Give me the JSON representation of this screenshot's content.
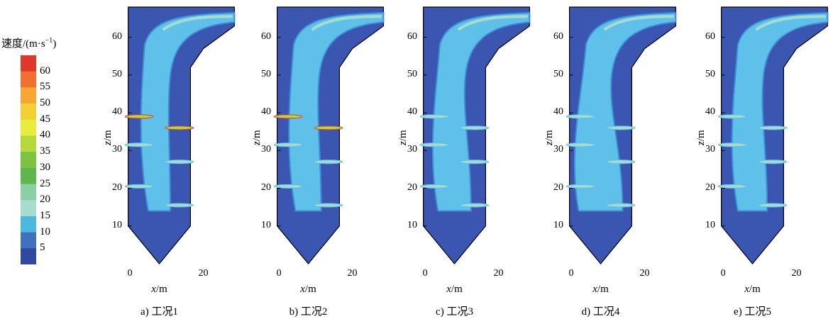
{
  "legend": {
    "title": "速度/(m·s",
    "title_sup": "−1",
    "title_end": ")",
    "ticks": [
      "60",
      "55",
      "50",
      "45",
      "40",
      "35",
      "30",
      "25",
      "20",
      "15",
      "10",
      "5"
    ],
    "colors": [
      "#e0382b",
      "#f2702e",
      "#f6a632",
      "#f3d034",
      "#e8ec3c",
      "#b5d83d",
      "#7cc243",
      "#5fb64c",
      "#8ccfa5",
      "#a9dccf",
      "#4fb8e0",
      "#3e72bf",
      "#3048a0"
    ]
  },
  "colors": {
    "background": "#3a56b0",
    "mid": "#3f8fd6",
    "light": "#5fc0ea",
    "pale": "#a6dccf",
    "outline": "#000000"
  },
  "chart_data": [
    {
      "type": "heatmap",
      "caption": "a) 工况1",
      "xlabel": "x/m",
      "ylabel": "z/m",
      "xlim": [
        -1,
        29
      ],
      "ylim": [
        0,
        68
      ],
      "xticks": [
        "0",
        "20"
      ],
      "yticks": [
        "10",
        "20",
        "30",
        "40",
        "50",
        "60"
      ]
    },
    {
      "type": "heatmap",
      "caption": "b) 工况2",
      "xlabel": "x/m",
      "ylabel": "z/m",
      "xlim": [
        -1,
        29
      ],
      "ylim": [
        0,
        68
      ],
      "xticks": [
        "0",
        "20"
      ],
      "yticks": [
        "10",
        "20",
        "30",
        "40",
        "50",
        "60"
      ]
    },
    {
      "type": "heatmap",
      "caption": "c) 工况3",
      "xlabel": "x/m",
      "ylabel": "z/m",
      "xlim": [
        -1,
        29
      ],
      "ylim": [
        0,
        68
      ],
      "xticks": [
        "0",
        "20"
      ],
      "yticks": [
        "10",
        "20",
        "30",
        "40",
        "50",
        "60"
      ]
    },
    {
      "type": "heatmap",
      "caption": "d) 工况4",
      "xlabel": "x/m",
      "ylabel": "z/m",
      "xlim": [
        -1,
        29
      ],
      "ylim": [
        0,
        68
      ],
      "xticks": [
        "0",
        "20"
      ],
      "yticks": [
        "10",
        "20",
        "30",
        "40",
        "50",
        "60"
      ]
    },
    {
      "type": "heatmap",
      "caption": "e) 工况5",
      "xlabel": "x/m",
      "ylabel": "z/m",
      "xlim": [
        -1,
        29
      ],
      "ylim": [
        0,
        68
      ],
      "xticks": [
        "0",
        "20"
      ],
      "yticks": [
        "10",
        "20",
        "30",
        "40",
        "50",
        "60"
      ]
    }
  ]
}
